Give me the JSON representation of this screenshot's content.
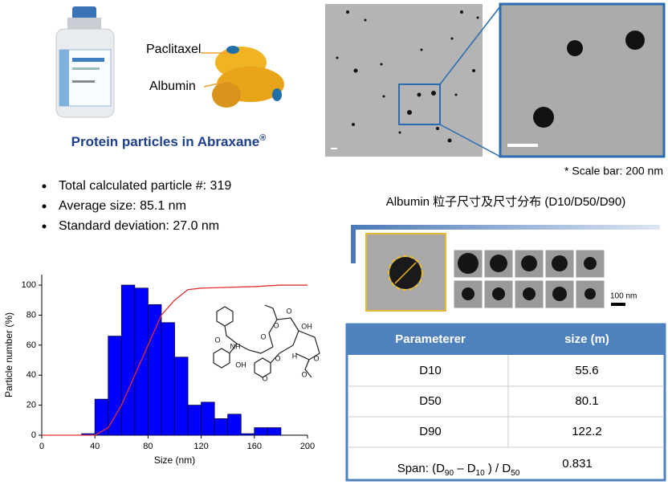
{
  "labels": {
    "paclitaxel": "Paclitaxel",
    "albumin": "Albumin"
  },
  "title": {
    "text": "Protein particles in Abraxane",
    "mark": "®"
  },
  "bullets": [
    "Total calculated particle #: 319",
    "Average size: 85.1 nm",
    "Standard deviation: 27.0 nm"
  ],
  "scale_note": "* Scale bar: 200 nm",
  "section_title": "Albumin 粒子尺寸及尺寸分布 (D10/D50/D90)",
  "thumb_scale": "100 nm",
  "table": {
    "header": [
      "Parameterer",
      "size (m)"
    ],
    "rows": [
      [
        "D10",
        55.6
      ],
      [
        "D50",
        80.1
      ],
      [
        "D90",
        122.2
      ]
    ],
    "span": {
      "label": [
        "Span: (D",
        "90",
        " – D",
        "10",
        " ) / D",
        "50"
      ],
      "value": 0.831
    }
  },
  "molecule_labels": [
    "O",
    "NH",
    "OH",
    "O",
    "O",
    "O",
    "OH",
    "O",
    "H",
    "O",
    "O",
    "O"
  ],
  "chart_data": {
    "type": "histogram",
    "bins": [
      30,
      40,
      50,
      60,
      70,
      80,
      90,
      100,
      110,
      120,
      130,
      140,
      150,
      160,
      170,
      180
    ],
    "values": [
      1,
      24,
      66,
      100,
      98,
      87,
      75,
      52,
      20,
      22,
      11,
      14,
      1,
      5,
      5
    ],
    "color": "#0000ff",
    "line": {
      "x": [
        0,
        40,
        50,
        60,
        70,
        80,
        90,
        100,
        110,
        120,
        140,
        160,
        180,
        200
      ],
      "values": [
        0,
        0,
        5,
        20,
        40,
        60,
        80,
        90,
        97,
        98,
        98.5,
        99,
        100,
        100
      ],
      "color": "#e03030"
    },
    "xlabel": "Size (nm)",
    "ylabel": "Particle number (%)",
    "xlim": [
      0,
      200
    ],
    "ylim": [
      0,
      107
    ],
    "xticks": [
      0,
      40,
      80,
      120,
      160,
      200
    ],
    "yticks": [
      0,
      20,
      40,
      60,
      80,
      100
    ]
  }
}
